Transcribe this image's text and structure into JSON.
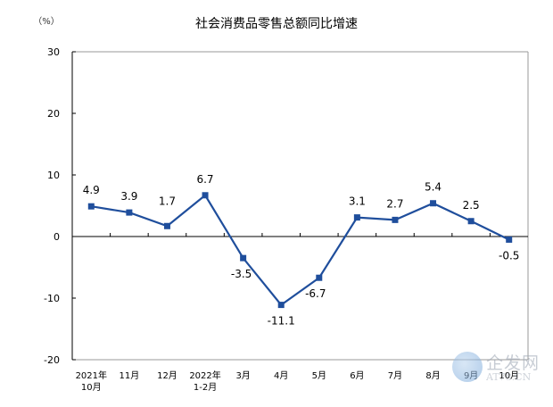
{
  "chart_data": {
    "type": "line",
    "title": "社会消费品零售总额同比增速",
    "unit_label": "（%）",
    "xlabel": "",
    "ylabel": "%",
    "ylim": [
      -20,
      30
    ],
    "yticks": [
      30,
      20,
      10,
      0,
      -10,
      -20
    ],
    "grid": false,
    "legend": null,
    "categories": [
      [
        "2021年",
        "10月"
      ],
      [
        "11月"
      ],
      [
        "12月"
      ],
      [
        "2022年",
        "1-2月"
      ],
      [
        "3月"
      ],
      [
        "4月"
      ],
      [
        "5月"
      ],
      [
        "6月"
      ],
      [
        "7月"
      ],
      [
        "8月"
      ],
      [
        "9月"
      ],
      [
        "10月"
      ]
    ],
    "series": [
      {
        "name": "社会消费品零售总额同比增速",
        "color": "#1f4e9c",
        "marker": "square",
        "values": [
          4.9,
          3.9,
          1.7,
          6.7,
          -3.5,
          -11.1,
          -6.7,
          3.1,
          2.7,
          5.4,
          2.5,
          -0.5
        ],
        "labels": [
          "4.9",
          "3.9",
          "1.7",
          "6.7",
          "-3.5",
          "-11.1",
          "-6.7",
          "3.1",
          "2.7",
          "5.4",
          "2.5",
          "-0.5"
        ]
      }
    ]
  },
  "watermark": {
    "text": "企发网",
    "sub": "AT78.CN"
  }
}
